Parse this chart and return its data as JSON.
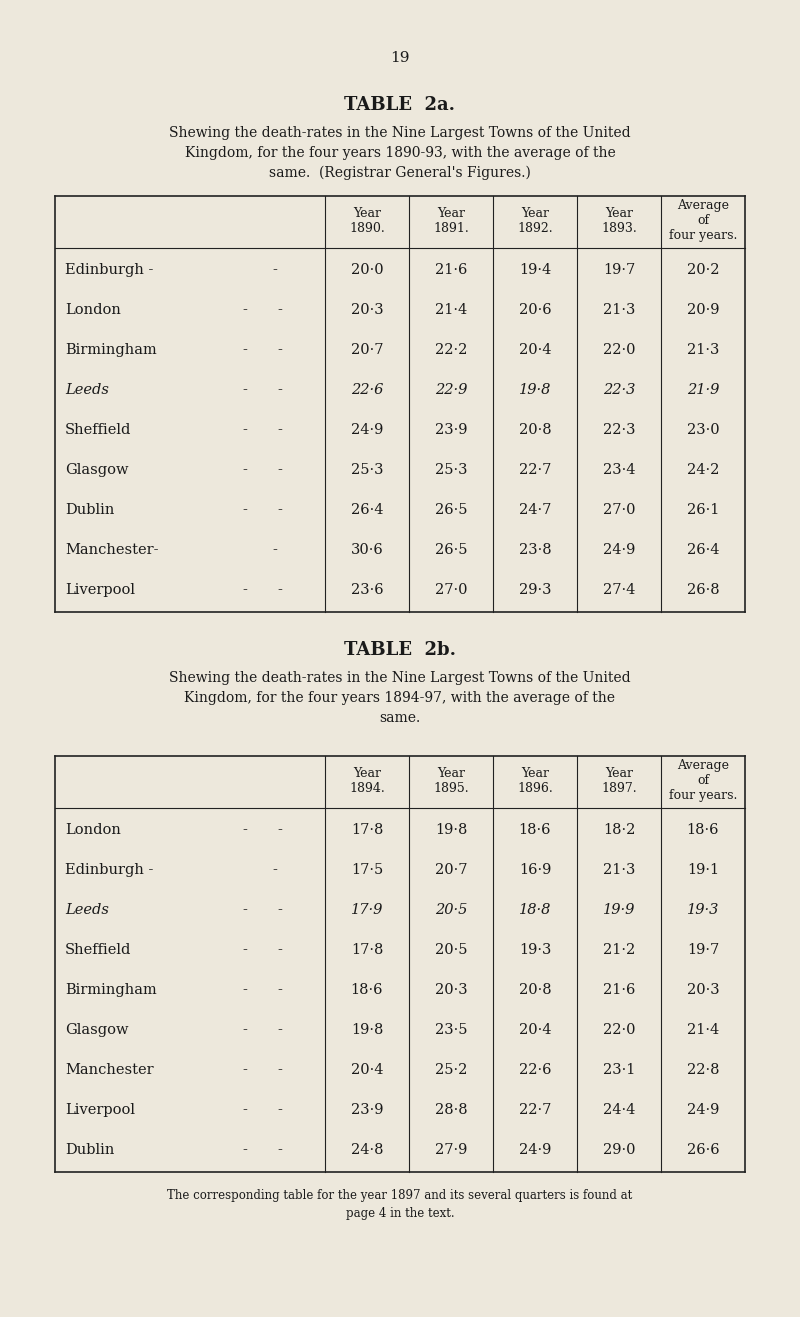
{
  "page_number": "19",
  "bg_color": "#EDE8DC",
  "text_color": "#1a1a1a",
  "table2a": {
    "title": "TABLE  2a.",
    "subtitle_lines": [
      "Shewing the death-rates in the Nine Largest Towns of the United",
      "Kingdom, for the four years 1890-93, with the average of the",
      "same.  (Registrar General's Figures.)"
    ],
    "col_headers": [
      "Year\n1890.",
      "Year\n1891.",
      "Year\n1892.",
      "Year\n1893.",
      "Average\nof\nfour years."
    ],
    "rows": [
      {
        "name": "Edinburgh -",
        "extra_dash": true,
        "italic": false,
        "vals": [
          "20·0",
          "21·6",
          "19·4",
          "19·7",
          "20·2"
        ]
      },
      {
        "name": "London",
        "extra_dash": true,
        "italic": false,
        "vals": [
          "20·3",
          "21·4",
          "20·6",
          "21·3",
          "20·9"
        ]
      },
      {
        "name": "Birmingham",
        "extra_dash": true,
        "italic": false,
        "vals": [
          "20·7",
          "22·2",
          "20·4",
          "22·0",
          "21·3"
        ]
      },
      {
        "name": "Leeds",
        "extra_dash": true,
        "italic": true,
        "vals": [
          "22·6",
          "22·9",
          "19·8",
          "22·3",
          "21·9"
        ]
      },
      {
        "name": "Sheffield",
        "extra_dash": true,
        "italic": false,
        "vals": [
          "24·9",
          "23·9",
          "20·8",
          "22·3",
          "23·0"
        ]
      },
      {
        "name": "Glasgow",
        "extra_dash": true,
        "italic": false,
        "vals": [
          "25·3",
          "25·3",
          "22·7",
          "23·4",
          "24·2"
        ]
      },
      {
        "name": "Dublin",
        "extra_dash": true,
        "italic": false,
        "vals": [
          "26·4",
          "26·5",
          "24·7",
          "27·0",
          "26·1"
        ]
      },
      {
        "name": "Manchester-",
        "extra_dash": true,
        "italic": false,
        "vals": [
          "30·6",
          "26·5",
          "23·8",
          "24·9",
          "26·4"
        ]
      },
      {
        "name": "Liverpool",
        "extra_dash": true,
        "italic": false,
        "vals": [
          "23·6",
          "27·0",
          "29·3",
          "27·4",
          "26·8"
        ]
      }
    ]
  },
  "table2b": {
    "title": "TABLE  2b.",
    "subtitle_lines": [
      "Shewing the death-rates in the Nine Largest Towns of the United",
      "Kingdom, for the four years 1894-97, with the average of the",
      "same."
    ],
    "col_headers": [
      "Year\n1894.",
      "Year\n1895.",
      "Year\n1896.",
      "Year\n1897.",
      "Average\nof\nfour years."
    ],
    "rows": [
      {
        "name": "London",
        "extra_dash": true,
        "italic": false,
        "vals": [
          "17·8",
          "19·8",
          "18·6",
          "18·2",
          "18·6"
        ]
      },
      {
        "name": "Edinburgh -",
        "extra_dash": true,
        "italic": false,
        "vals": [
          "17·5",
          "20·7",
          "16·9",
          "21·3",
          "19·1"
        ]
      },
      {
        "name": "Leeds",
        "extra_dash": true,
        "italic": true,
        "vals": [
          "17·9",
          "20·5",
          "18·8",
          "19·9",
          "19·3"
        ]
      },
      {
        "name": "Sheffield",
        "extra_dash": true,
        "italic": false,
        "vals": [
          "17·8",
          "20·5",
          "19·3",
          "21·2",
          "19·7"
        ]
      },
      {
        "name": "Birmingham",
        "extra_dash": true,
        "italic": false,
        "vals": [
          "18·6",
          "20·3",
          "20·8",
          "21·6",
          "20·3"
        ]
      },
      {
        "name": "Glasgow",
        "extra_dash": true,
        "italic": false,
        "vals": [
          "19·8",
          "23·5",
          "20·4",
          "22·0",
          "21·4"
        ]
      },
      {
        "name": "Manchester",
        "extra_dash": true,
        "italic": false,
        "vals": [
          "20·4",
          "25·2",
          "22·6",
          "23·1",
          "22·8"
        ]
      },
      {
        "name": "Liverpool",
        "extra_dash": true,
        "italic": false,
        "vals": [
          "23·9",
          "28·8",
          "22·7",
          "24·4",
          "24·9"
        ]
      },
      {
        "name": "Dublin",
        "extra_dash": true,
        "italic": false,
        "vals": [
          "24·8",
          "27·9",
          "24·9",
          "29·0",
          "26·6"
        ]
      }
    ]
  },
  "footnote_lines": [
    "The corresponding table for the year 1897 and its several quarters is found at",
    "page 4 in the text."
  ]
}
